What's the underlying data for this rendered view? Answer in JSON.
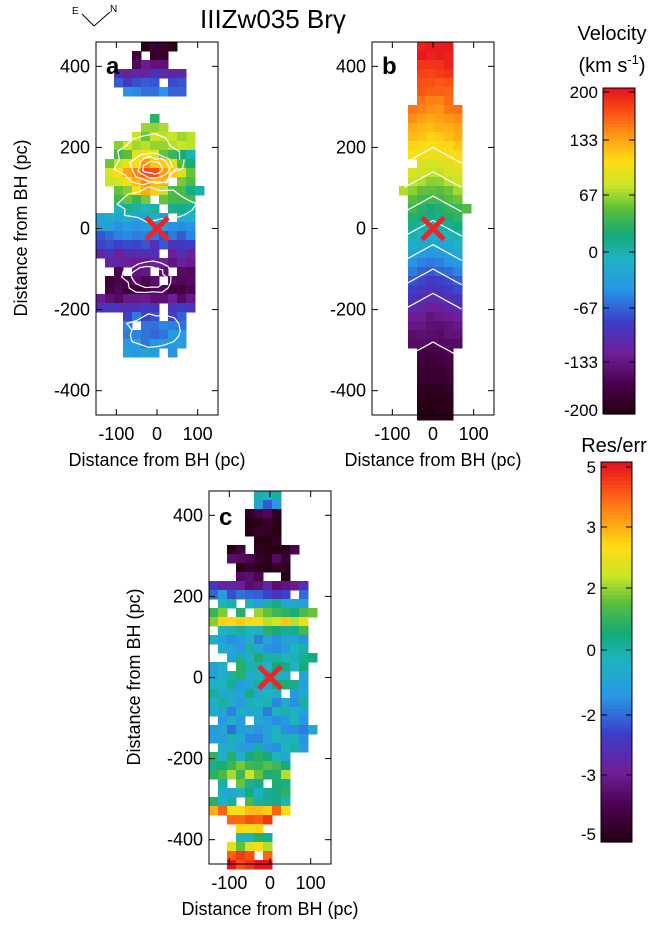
{
  "title": "IIIZw035 Brγ",
  "compass": {
    "east": "E",
    "north": "N"
  },
  "chart_data": [
    {
      "panel": "a",
      "type": "heatmap",
      "description_from_figure": "observed Brγ velocity map with contours",
      "xlabel": "Distance from BH (pc)",
      "ylabel": "Distance from BH (pc)",
      "xticks": [
        "-100",
        "0",
        "100"
      ],
      "yticks": [
        "400",
        "200",
        "0",
        "-200",
        "-400"
      ],
      "xlim": [
        -150,
        150
      ],
      "ylim": [
        -460,
        460
      ],
      "bh_marker": {
        "x": 0,
        "y": 0,
        "symbol": "×",
        "color": "#e8272b"
      },
      "velocity_by_y_pc": [
        {
          "y": 440,
          "v": -190
        },
        {
          "y": 360,
          "v": null
        },
        {
          "y": 250,
          "v": 60
        },
        {
          "y": 200,
          "v": 80
        },
        {
          "y": 140,
          "v": 190
        },
        {
          "y": 100,
          "v": 150
        },
        {
          "y": 60,
          "v": 10
        },
        {
          "y": 0,
          "v": -50
        },
        {
          "y": -60,
          "v": -110
        },
        {
          "y": -120,
          "v": -160
        },
        {
          "y": -160,
          "v": -170
        },
        {
          "y": -200,
          "v": -80
        },
        {
          "y": -260,
          "v": -60
        },
        {
          "y": -300,
          "v": -40
        }
      ]
    },
    {
      "panel": "b",
      "type": "heatmap",
      "description_from_figure": "model Brγ velocity map with contours",
      "xlabel": "Distance from BH (pc)",
      "ylabel": "",
      "xticks": [
        "-100",
        "0",
        "100"
      ],
      "yticks": [
        "400",
        "200",
        "0",
        "-200",
        "-400"
      ],
      "xlim": [
        -150,
        150
      ],
      "ylim": [
        -460,
        460
      ],
      "bh_marker": {
        "x": 0,
        "y": 0,
        "symbol": "×",
        "color": "#e8272b"
      },
      "velocity_by_y_pc": [
        {
          "y": 440,
          "v": 195
        },
        {
          "y": 380,
          "v": 175
        },
        {
          "y": 320,
          "v": 155
        },
        {
          "y": 260,
          "v": 130
        },
        {
          "y": 200,
          "v": 105
        },
        {
          "y": 140,
          "v": 75
        },
        {
          "y": 80,
          "v": 40
        },
        {
          "y": 20,
          "v": 5
        },
        {
          "y": -40,
          "v": -35
        },
        {
          "y": -100,
          "v": -75
        },
        {
          "y": -160,
          "v": -110
        },
        {
          "y": -220,
          "v": -140
        },
        {
          "y": -280,
          "v": -160
        },
        {
          "y": -340,
          "v": -180
        },
        {
          "y": -400,
          "v": -195
        },
        {
          "y": -440,
          "v": -200
        }
      ]
    },
    {
      "panel": "c",
      "type": "heatmap",
      "description_from_figure": "residual / error map",
      "xlabel": "Distance from BH (pc)",
      "ylabel": "Distance from BH (pc)",
      "xticks": [
        "-100",
        "0",
        "100"
      ],
      "yticks": [
        "400",
        "200",
        "0",
        "-200",
        "-400"
      ],
      "xlim": [
        -150,
        150
      ],
      "ylim": [
        -460,
        460
      ],
      "bh_marker": {
        "x": 0,
        "y": 0,
        "symbol": "×",
        "color": "#e8272b"
      },
      "residual_by_y_pc": [
        {
          "y": 440,
          "r": 0.3
        },
        {
          "y": 400,
          "r": -5
        },
        {
          "y": 360,
          "r": -5
        },
        {
          "y": 300,
          "r": -4
        },
        {
          "y": 260,
          "r": -5
        },
        {
          "y": 200,
          "r": -1.5
        },
        {
          "y": 140,
          "r": 2.5
        },
        {
          "y": 100,
          "r": -1
        },
        {
          "y": 40,
          "r": 0
        },
        {
          "y": 0,
          "r": 0
        },
        {
          "y": -60,
          "r": -0.6
        },
        {
          "y": -120,
          "r": -1
        },
        {
          "y": -180,
          "r": -0.5
        },
        {
          "y": -230,
          "r": 1.5
        },
        {
          "y": -300,
          "r": -0.3
        },
        {
          "y": -340,
          "r": 5
        },
        {
          "y": -400,
          "r": 0
        },
        {
          "y": -440,
          "r": 5
        }
      ]
    }
  ],
  "colorbars": [
    {
      "title_line1": "Velocity",
      "title_line2_base": "(km s",
      "title_line2_sup": "-1",
      "title_line2_end": ")",
      "ticks": [
        "200",
        "133",
        "67",
        "0",
        "-67",
        "-133",
        "-200"
      ],
      "range": [
        -200,
        200
      ]
    },
    {
      "title": "Res/err",
      "ticks": [
        "5",
        "3",
        "2",
        "0",
        "-2",
        "-3",
        "-5"
      ],
      "range": [
        -5,
        5
      ]
    }
  ]
}
